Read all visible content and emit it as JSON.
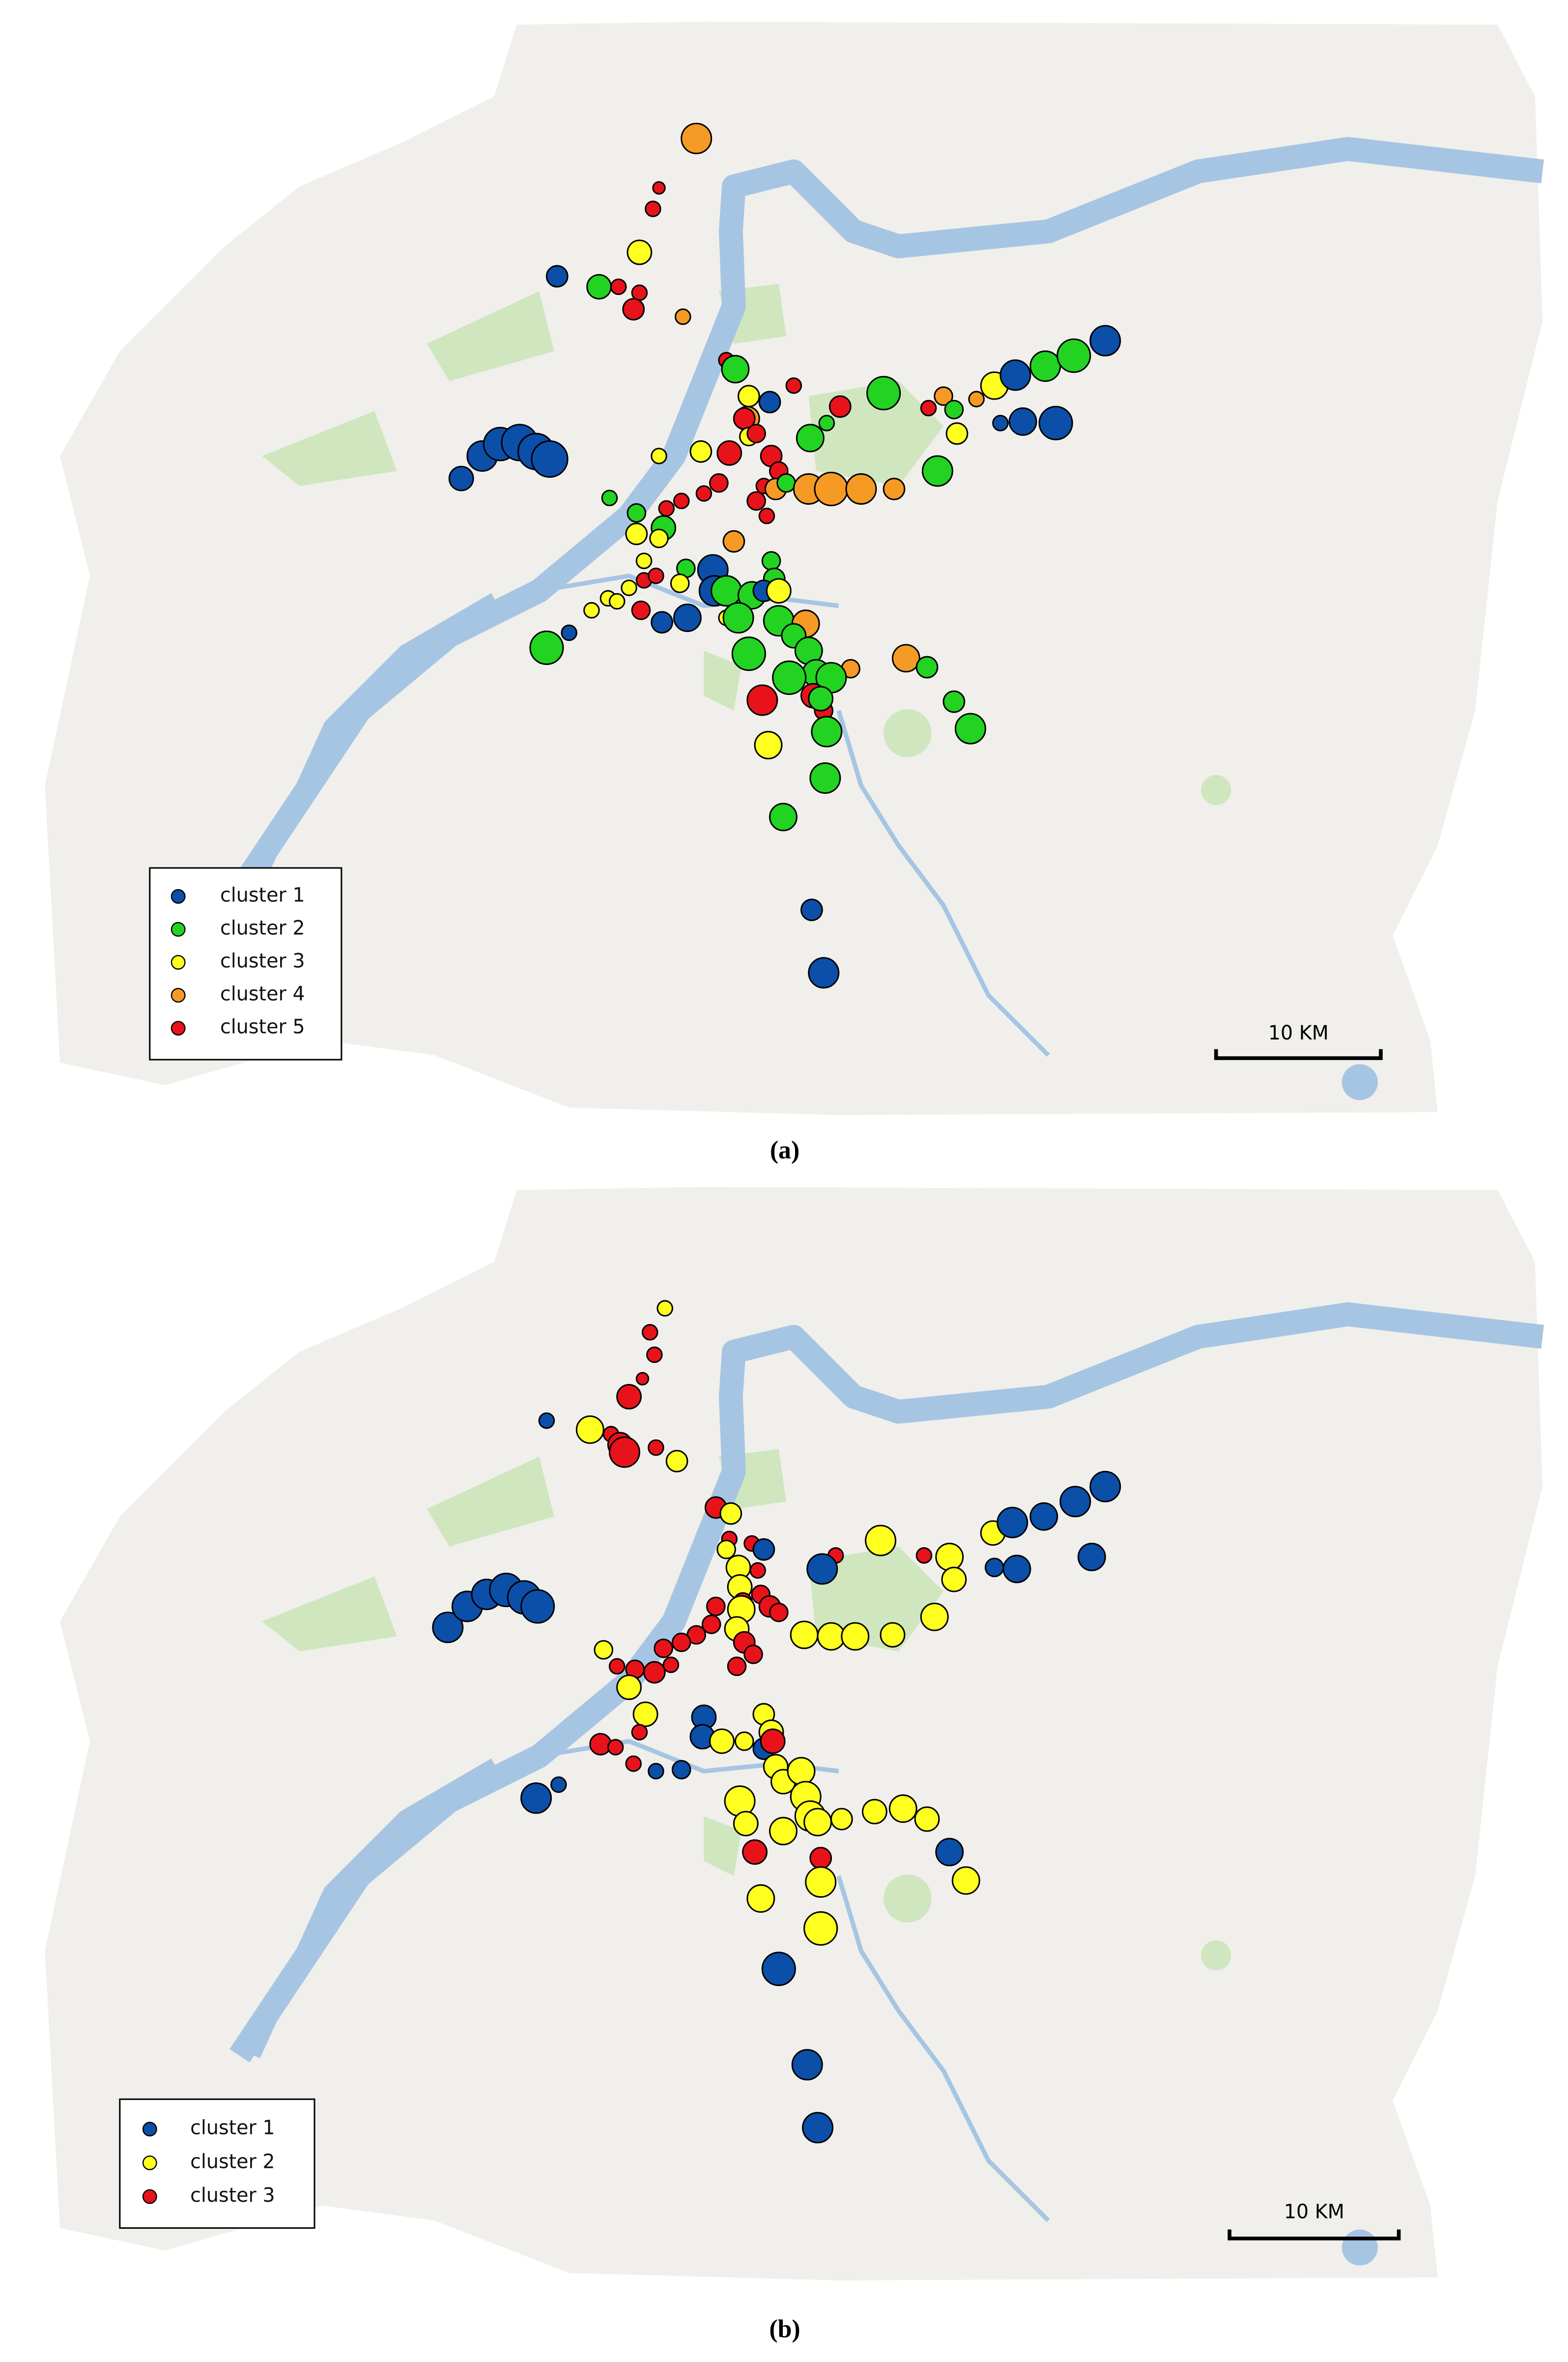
{
  "panels": [
    {
      "caption": "(a)",
      "scale_label": "10 KM",
      "legend": [
        {
          "name": "cluster 1",
          "color": "#0b4fa8"
        },
        {
          "name": "cluster 2",
          "color": "#22d322"
        },
        {
          "name": "cluster 3",
          "color": "#ffff1f"
        },
        {
          "name": "cluster 4",
          "color": "#f59a25"
        },
        {
          "name": "cluster 5",
          "color": "#e8131a"
        }
      ]
    },
    {
      "caption": "(b)",
      "scale_label": "10 KM",
      "legend": [
        {
          "name": "cluster 1",
          "color": "#0b4fa8"
        },
        {
          "name": "cluster 2",
          "color": "#ffff1f"
        },
        {
          "name": "cluster 3",
          "color": "#e8131a"
        }
      ]
    }
  ]
}
